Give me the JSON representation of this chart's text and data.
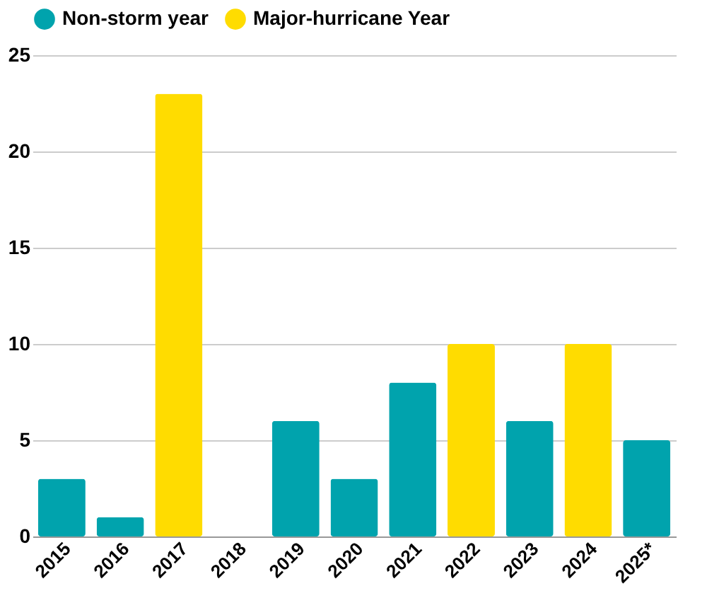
{
  "chart_data": {
    "type": "bar",
    "categories": [
      "2015",
      "2016",
      "2017",
      "2018",
      "2019",
      "2020",
      "2021",
      "2022",
      "2023",
      "2024",
      "2025*"
    ],
    "series": [
      {
        "name": "Non-storm year",
        "color": "#00a3ad",
        "values": [
          3,
          1,
          null,
          0,
          6,
          3,
          8,
          null,
          6,
          null,
          5
        ]
      },
      {
        "name": "Major-hurricane Year",
        "color": "#ffdc00",
        "values": [
          null,
          null,
          23,
          null,
          null,
          null,
          null,
          10,
          null,
          10,
          null
        ]
      }
    ],
    "ylim": [
      0,
      25
    ],
    "yticks": [
      0,
      5,
      10,
      15,
      20,
      25
    ],
    "grid": "y",
    "legend": "top"
  }
}
